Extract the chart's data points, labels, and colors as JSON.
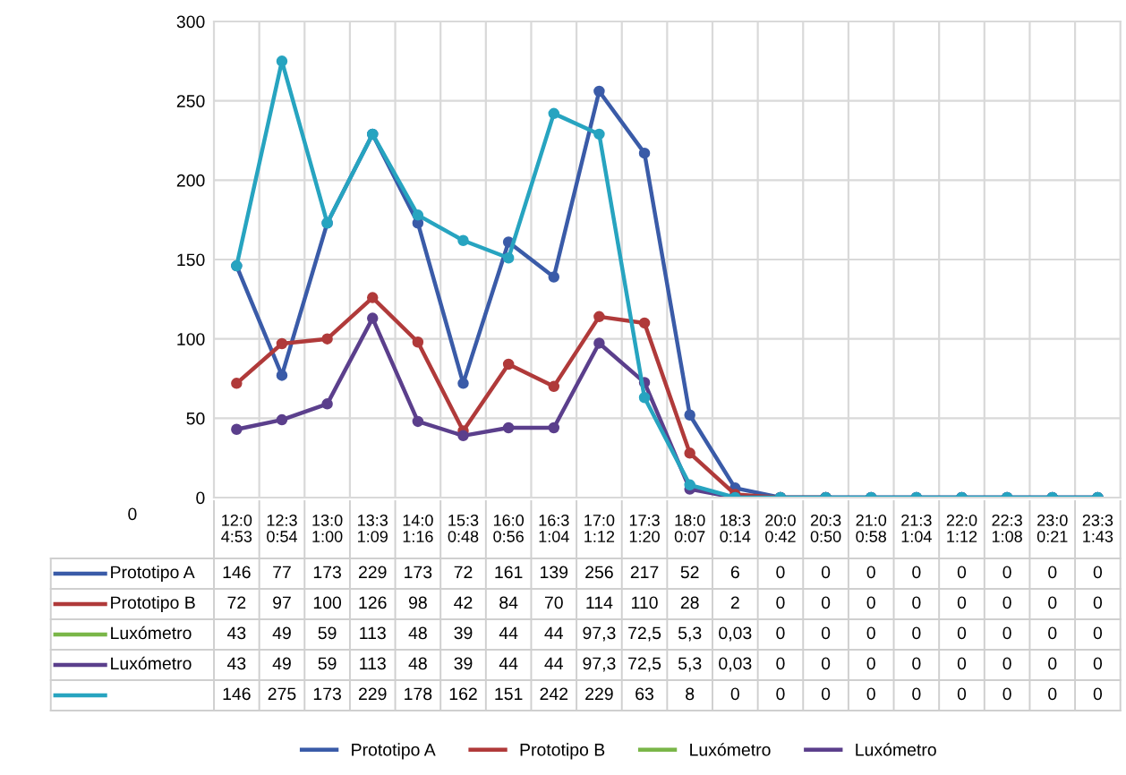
{
  "chart_data": {
    "type": "line",
    "categories": [
      "12:0\n4:53",
      "12:3\n0:54",
      "13:0\n1:00",
      "13:3\n1:09",
      "14:0\n1:16",
      "15:3\n0:48",
      "16:0\n0:56",
      "16:3\n1:04",
      "17:0\n1:12",
      "17:3\n1:20",
      "18:0\n0:07",
      "18:3\n0:14",
      "20:0\n0:42",
      "20:3\n0:50",
      "21:0\n0:58",
      "21:3\n1:04",
      "22:0\n1:12",
      "22:3\n1:08",
      "23:0\n0:21",
      "23:3\n1:43"
    ],
    "series": [
      {
        "name": "Prototipo A",
        "color": "#3a5ba8",
        "values": [
          146,
          77,
          173,
          229,
          173,
          72,
          161,
          139,
          256,
          217,
          52,
          6,
          0,
          0,
          0,
          0,
          0,
          0,
          0,
          0
        ],
        "value_labels": [
          "146",
          "77",
          "173",
          "229",
          "173",
          "72",
          "161",
          "139",
          "256",
          "217",
          "52",
          "6",
          "0",
          "0",
          "0",
          "0",
          "0",
          "0",
          "0",
          "0"
        ]
      },
      {
        "name": "Prototipo B",
        "color": "#b03a3a",
        "values": [
          72,
          97,
          100,
          126,
          98,
          42,
          84,
          70,
          114,
          110,
          28,
          2,
          0,
          0,
          null,
          null,
          null,
          null,
          null,
          null
        ],
        "value_labels": [
          "72",
          "97",
          "100",
          "126",
          "98",
          "42",
          "84",
          "70",
          "114",
          "110",
          "28",
          "2",
          "0",
          "0",
          "0",
          "0",
          "0",
          "0",
          "0",
          "0"
        ]
      },
      {
        "name": "Luxómetro",
        "color": "#7ab648",
        "values": [
          null,
          null,
          null,
          null,
          null,
          null,
          null,
          null,
          null,
          null,
          null,
          null,
          null,
          null,
          null,
          null,
          null,
          null,
          null,
          null
        ],
        "value_labels": [
          "43",
          "49",
          "59",
          "113",
          "48",
          "39",
          "44",
          "44",
          "97,3",
          "72,5",
          "5,3",
          "0,03",
          "0",
          "0",
          "0",
          "0",
          "0",
          "0",
          "0",
          "0"
        ]
      },
      {
        "name": "Luxómetro",
        "color": "#5b3f8c",
        "values": [
          43,
          49,
          59,
          113,
          48,
          39,
          44,
          44,
          97.3,
          72.5,
          5.3,
          0.03,
          0,
          0,
          0,
          0,
          0,
          0,
          0,
          0
        ],
        "value_labels": [
          "43",
          "49",
          "59",
          "113",
          "48",
          "39",
          "44",
          "44",
          "97,3",
          "72,5",
          "5,3",
          "0,03",
          "0",
          "0",
          "0",
          "0",
          "0",
          "0",
          "0",
          "0"
        ]
      },
      {
        "color": "#27a4c0",
        "values": [
          146,
          275,
          173,
          229,
          178,
          162,
          151,
          242,
          229,
          63,
          8,
          0,
          0,
          0,
          0,
          0,
          0,
          0,
          0,
          0
        ],
        "value_labels": [
          "146",
          "275",
          "173",
          "229",
          "178",
          "162",
          "151",
          "242",
          "229",
          "63",
          "8",
          "0",
          "0",
          "0",
          "0",
          "0",
          "0",
          "0",
          "0",
          "0"
        ]
      }
    ],
    "ylim": [
      0,
      300
    ],
    "yticks": [
      0,
      50,
      100,
      150,
      200,
      250,
      300
    ],
    "grid": true,
    "marker": "circle",
    "line_style": "solid",
    "legend": "bottom",
    "annotations": [
      "0"
    ]
  }
}
